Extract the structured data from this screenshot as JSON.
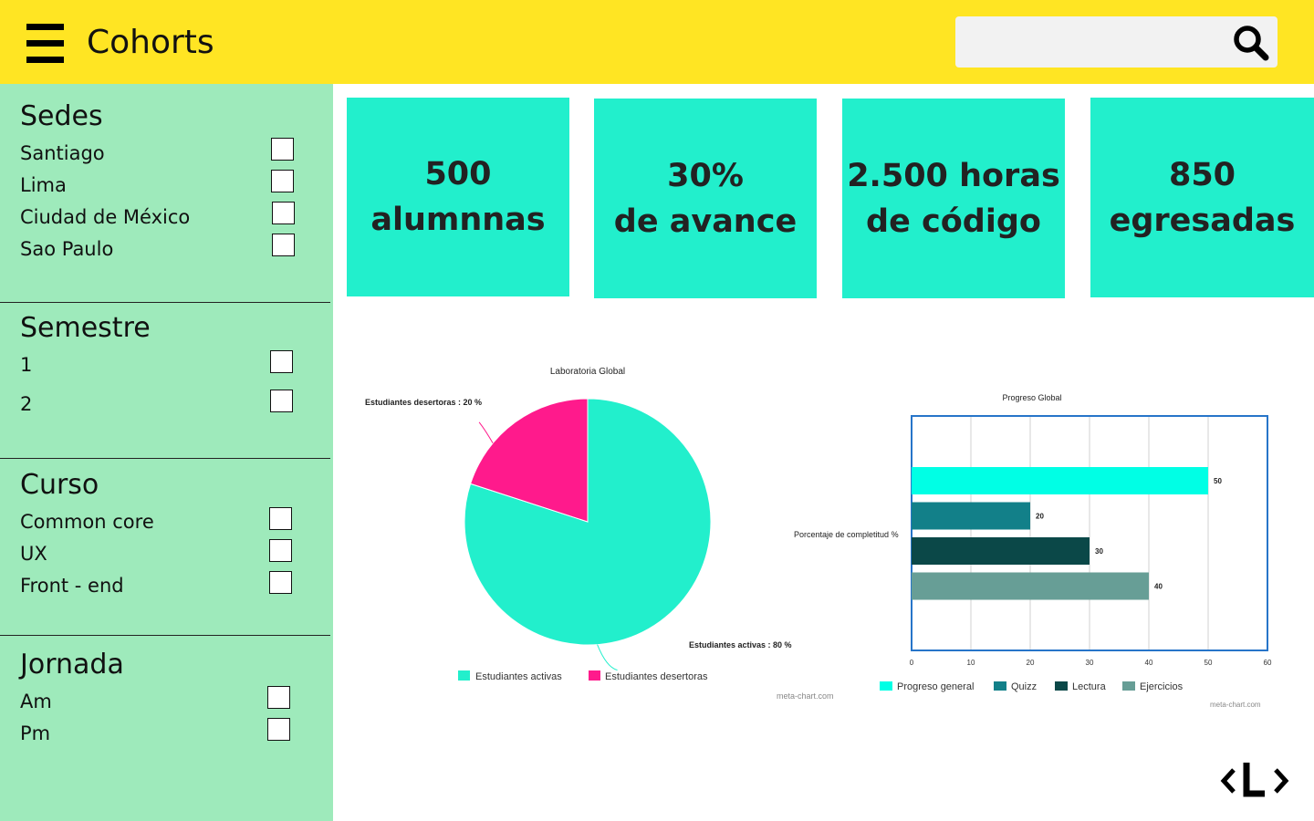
{
  "header": {
    "title": "Cohorts",
    "search_placeholder": "",
    "brand_color": "#ffe523"
  },
  "sidebar": {
    "sections": [
      {
        "heading": "Sedes",
        "options": [
          "Santiago",
          "Lima",
          "Ciudad de México",
          "Sao Paulo"
        ]
      },
      {
        "heading": "Semestre",
        "options": [
          "1",
          "2"
        ]
      },
      {
        "heading": "Curso",
        "options": [
          "Common core",
          "UX",
          "Front - end"
        ]
      },
      {
        "heading": "Jornada",
        "options": [
          "Am",
          "Pm"
        ]
      }
    ]
  },
  "stats": [
    {
      "line1": "500",
      "line2": "alumnnas"
    },
    {
      "line1": "30%",
      "line2": "de avance"
    },
    {
      "line1": "2.500 horas",
      "line2": "de código"
    },
    {
      "line1": "850",
      "line2": "egresadas"
    }
  ],
  "chart_data": [
    {
      "type": "pie",
      "title": "Laboratoria Global",
      "categories": [
        "Estudiantes activas",
        "Estudiantes desertoras"
      ],
      "values": [
        80,
        20
      ],
      "data_labels": [
        "Estudiantes activas : 80 %",
        "Estudiantes desertoras : 20 %"
      ],
      "colors": [
        "#22efcc",
        "#ff1a8c"
      ],
      "legend": "bottom",
      "credit": "meta-chart.com"
    },
    {
      "type": "bar",
      "orientation": "horizontal",
      "title": "Progreso Global",
      "ylabel": "Porcentaje de completitud %",
      "series": [
        {
          "name": "Progreso general",
          "values": [
            50
          ],
          "color": "#00ffe5"
        },
        {
          "name": "Quizz",
          "values": [
            20
          ],
          "color": "#128089"
        },
        {
          "name": "Lectura",
          "values": [
            30
          ],
          "color": "#0b4848"
        },
        {
          "name": "Ejercicios",
          "values": [
            40
          ],
          "color": "#679e96"
        }
      ],
      "xlim": [
        0,
        60
      ],
      "xticks": [
        "0",
        "10",
        "20",
        "30",
        "40",
        "50",
        "60"
      ],
      "grid": true,
      "legend": "bottom",
      "credit": "meta-chart.com"
    }
  ]
}
